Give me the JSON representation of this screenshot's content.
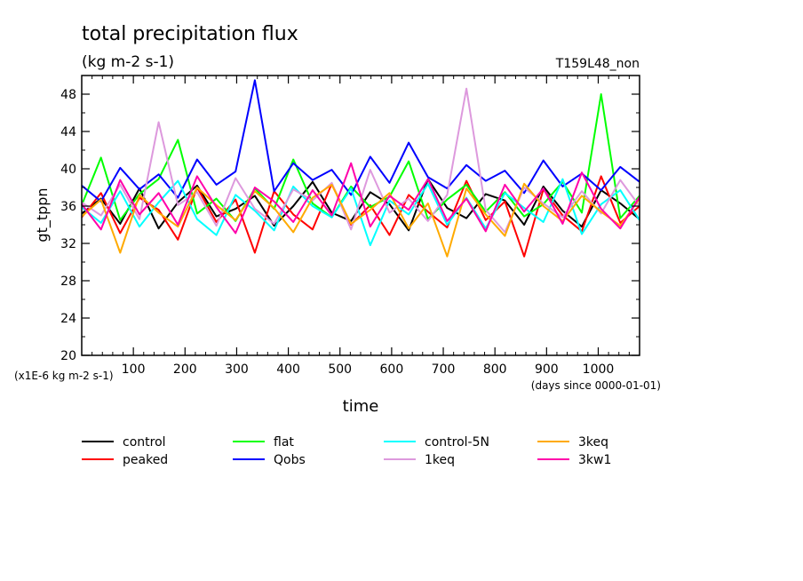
{
  "chart_data": {
    "type": "line",
    "title": "total precipitation flux",
    "subtitle": "(kg m-2 s-1)",
    "run_label": "T159L48_non",
    "ylabel": "gt_tppn",
    "xlabel": "time",
    "x_unit_note": "(days since 0000-01-01)",
    "y_unit_note": "(x1E-6 kg m-2 s-1)",
    "xlim": [
      0,
      1080
    ],
    "ylim": [
      20,
      50
    ],
    "x_ticks": [
      "100",
      "200",
      "300",
      "400",
      "500",
      "600",
      "700",
      "800",
      "900",
      "1000"
    ],
    "y_ticks": [
      "20",
      "24",
      "28",
      "32",
      "36",
      "40",
      "44",
      "48"
    ],
    "grid": false,
    "legend_position": "bottom",
    "series": [
      {
        "name": "control",
        "color": "#000000",
        "values": [
          35.2,
          36.8,
          34.1,
          37.9,
          33.6,
          36.4,
          38.2,
          34.9,
          35.7,
          37.1,
          33.9,
          36.0,
          38.6,
          35.3,
          34.4,
          37.5,
          36.2,
          33.4,
          38.9,
          35.8,
          34.7,
          37.3,
          36.6,
          34.0,
          38.1,
          35.5,
          33.8,
          37.7,
          36.3,
          34.6
        ]
      },
      {
        "name": "peaked",
        "color": "#ff0000",
        "values": [
          34.8,
          37.4,
          33.1,
          36.9,
          35.6,
          32.4,
          38.0,
          34.3,
          36.7,
          31.0,
          37.6,
          35.1,
          33.5,
          38.4,
          34.0,
          36.1,
          32.9,
          37.2,
          35.4,
          33.7,
          38.7,
          34.5,
          36.5,
          30.6,
          37.8,
          35.0,
          33.3,
          39.2,
          34.2,
          36.0
        ]
      },
      {
        "name": "flat",
        "color": "#00ff00",
        "values": [
          36.1,
          41.2,
          34.5,
          37.3,
          38.9,
          43.1,
          35.2,
          36.8,
          34.4,
          37.9,
          35.7,
          41.0,
          36.3,
          34.8,
          38.1,
          35.9,
          37.0,
          40.8,
          34.6,
          36.7,
          38.3,
          35.4,
          37.5,
          34.9,
          36.2,
          38.6,
          35.3,
          48.0,
          34.7,
          37.1
        ]
      },
      {
        "name": "Qobs",
        "color": "#0000ff",
        "values": [
          38.2,
          36.5,
          40.1,
          37.8,
          39.4,
          36.9,
          41.0,
          38.3,
          39.7,
          49.5,
          37.6,
          40.6,
          38.8,
          39.9,
          37.2,
          41.3,
          38.5,
          42.8,
          39.1,
          37.9,
          40.4,
          38.7,
          39.8,
          37.4,
          40.9,
          38.1,
          39.5,
          37.7,
          40.2,
          38.6
        ]
      },
      {
        "name": "control-5N",
        "color": "#00ffff",
        "values": [
          35.9,
          34.2,
          37.6,
          33.8,
          36.4,
          38.7,
          34.6,
          32.9,
          37.2,
          35.5,
          33.4,
          38.1,
          36.0,
          34.8,
          37.9,
          31.8,
          36.6,
          35.1,
          38.4,
          34.0,
          36.9,
          33.6,
          37.4,
          35.8,
          34.3,
          38.9,
          33.0,
          36.2,
          37.7,
          34.5
        ]
      },
      {
        "name": "1keq",
        "color": "#dd99dd",
        "values": [
          36.4,
          35.0,
          38.3,
          34.6,
          45.0,
          36.1,
          37.5,
          33.9,
          39.0,
          35.7,
          34.1,
          37.8,
          36.6,
          38.5,
          33.5,
          39.9,
          35.3,
          36.8,
          34.4,
          37.2,
          48.6,
          35.6,
          33.2,
          38.0,
          36.3,
          34.8,
          37.6,
          35.2,
          38.8,
          36.0
        ]
      },
      {
        "name": "3keq",
        "color": "#ffaa00",
        "values": [
          34.9,
          36.7,
          31.0,
          37.2,
          35.3,
          33.8,
          38.0,
          36.1,
          34.5,
          37.6,
          35.8,
          33.2,
          36.9,
          38.3,
          34.1,
          35.6,
          37.4,
          33.6,
          36.3,
          30.6,
          37.9,
          35.1,
          32.8,
          38.4,
          36.0,
          34.4,
          37.1,
          35.4,
          33.9,
          36.8
        ]
      },
      {
        "name": "3kw1",
        "color": "#ff00aa",
        "values": [
          36.2,
          33.5,
          38.8,
          35.1,
          37.4,
          34.0,
          39.2,
          35.9,
          33.1,
          38.0,
          36.5,
          34.3,
          37.7,
          35.0,
          40.6,
          33.8,
          37.1,
          35.6,
          38.9,
          34.4,
          36.8,
          33.3,
          38.3,
          35.4,
          37.9,
          34.1,
          39.6,
          35.7,
          33.6,
          37.0
        ]
      }
    ]
  }
}
